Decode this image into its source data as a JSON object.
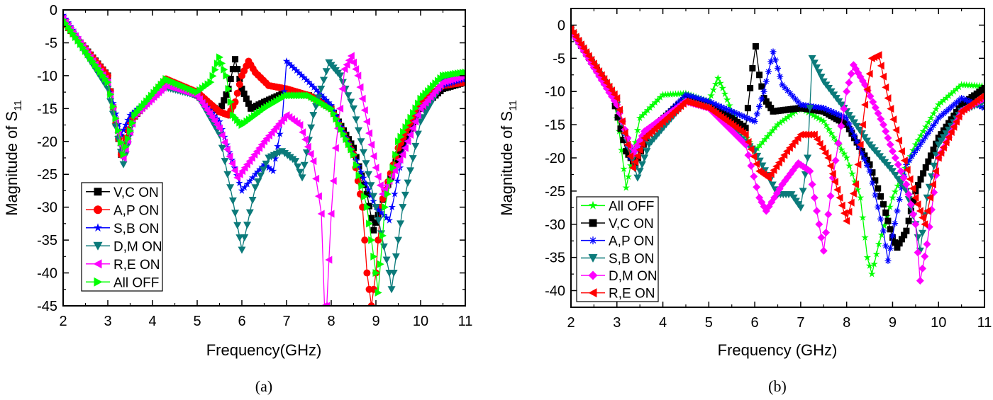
{
  "chart_data": [
    {
      "type": "line",
      "panel_label": "(a)",
      "xlabel": "Frequency(GHz)",
      "ylabel": "Magnitude of S",
      "ylabel_sub": "11",
      "xlim": [
        2,
        11
      ],
      "ylim": [
        -45,
        0
      ],
      "xticks": [
        "2",
        "3",
        "4",
        "5",
        "6",
        "7",
        "8",
        "9",
        "10",
        "11"
      ],
      "yticks": [
        "0",
        "-5",
        "-10",
        "-15",
        "-20",
        "-25",
        "-30",
        "-35",
        "-40",
        "-45"
      ],
      "grid": false,
      "legend_position": "bottom-left",
      "series": [
        {
          "name": "V,C ON",
          "color": "#000000",
          "marker": "square",
          "x": [
            2,
            3,
            3.3,
            3.5,
            4.3,
            5,
            5.5,
            5.7,
            5.85,
            6,
            6.2,
            6.5,
            7,
            7.5,
            8,
            8.5,
            8.8,
            8.95,
            9.1,
            9.5,
            10,
            10.5,
            11
          ],
          "y": [
            -1.8,
            -10,
            -22,
            -17,
            -10.8,
            -13,
            -15.5,
            -12,
            -7.5,
            -12,
            -15,
            -14,
            -12.5,
            -13,
            -15,
            -21,
            -28,
            -33.5,
            -30,
            -22,
            -15,
            -12,
            -11
          ]
        },
        {
          "name": "A,P ON",
          "color": "#ff0000",
          "marker": "circle",
          "x": [
            2,
            3,
            3.3,
            3.5,
            4.3,
            5,
            5.5,
            5.7,
            5.85,
            6,
            6.15,
            6.3,
            6.6,
            7,
            7.5,
            8,
            8.5,
            8.7,
            8.8,
            8.9,
            9,
            9.1,
            9.5,
            10,
            10.5,
            11
          ],
          "y": [
            -1.8,
            -10,
            -22,
            -17,
            -10.5,
            -12.5,
            -15.5,
            -16,
            -14,
            -10,
            -7.8,
            -9.5,
            -11.5,
            -12,
            -13,
            -15,
            -22,
            -30,
            -40,
            -45,
            -40,
            -30,
            -21,
            -14,
            -11.5,
            -11
          ]
        },
        {
          "name": "S,B ON",
          "color": "#0000ff",
          "marker": "star",
          "x": [
            2,
            3,
            3.3,
            3.5,
            4.3,
            5,
            5.5,
            6,
            6.3,
            6.5,
            6.7,
            6.9,
            7,
            7.5,
            8,
            8.5,
            9,
            9.3,
            9.6,
            10,
            10.5,
            11
          ],
          "y": [
            -0.8,
            -11,
            -19,
            -16,
            -11.5,
            -13,
            -17,
            -27.5,
            -25,
            -23.5,
            -24.5,
            -17,
            -7.8,
            -11,
            -14.5,
            -22,
            -30,
            -32,
            -22,
            -15,
            -11.5,
            -10.5
          ]
        },
        {
          "name": "D,M ON",
          "color": "#0b7a7a",
          "marker": "triangle-down",
          "x": [
            2,
            3,
            3.35,
            3.6,
            4.3,
            5,
            5.5,
            5.8,
            6,
            6.3,
            6.6,
            6.9,
            7.2,
            7.35,
            7.6,
            7.95,
            8.2,
            8.5,
            9,
            9.3,
            9.35,
            9.6,
            10,
            10.5,
            11
          ],
          "y": [
            -1.3,
            -12,
            -23.5,
            -16,
            -11.8,
            -13,
            -19,
            -29,
            -36.5,
            -27,
            -22.5,
            -21.5,
            -23,
            -25.5,
            -16,
            -8,
            -10,
            -15,
            -30,
            -40,
            -42.5,
            -30,
            -17,
            -11,
            -10
          ]
        },
        {
          "name": "R,E ON",
          "color": "#ff00ff",
          "marker": "triangle-left",
          "x": [
            2,
            3,
            3.35,
            3.6,
            4.3,
            5,
            5.5,
            5.9,
            6.5,
            7,
            7.3,
            7.6,
            7.78,
            7.85,
            7.9,
            8,
            8.1,
            8.3,
            8.45,
            8.6,
            8.8,
            9,
            9.15,
            9.3,
            9.6,
            10,
            10.5,
            11
          ],
          "y": [
            -1.3,
            -11,
            -22.5,
            -16,
            -11.5,
            -13,
            -18,
            -25.5,
            -20,
            -16,
            -17.5,
            -23,
            -31,
            -45,
            -45,
            -31,
            -21,
            -9,
            -7,
            -10,
            -17,
            -24,
            -28,
            -26,
            -22,
            -15,
            -11,
            -10
          ]
        },
        {
          "name": "All OFF",
          "color": "#00ff00",
          "marker": "triangle-right",
          "x": [
            2,
            3,
            3.35,
            3.6,
            4.3,
            5,
            5.3,
            5.5,
            5.65,
            5.8,
            6,
            6.5,
            7,
            7.5,
            8,
            8.5,
            8.8,
            9,
            9.05,
            9.2,
            9.5,
            10,
            10.5,
            11
          ],
          "y": [
            -1.5,
            -11,
            -22,
            -16,
            -10.5,
            -12.5,
            -11,
            -7.2,
            -10,
            -16,
            -17.5,
            -15,
            -13,
            -13,
            -15,
            -22,
            -30,
            -40,
            -43,
            -30,
            -20,
            -13.5,
            -10,
            -9.5
          ]
        }
      ]
    },
    {
      "type": "line",
      "panel_label": "(b)",
      "xlabel": "Frequency (GHz)",
      "ylabel": "Magnitude of S",
      "ylabel_sub": "11",
      "xlim": [
        2,
        11
      ],
      "ylim": [
        -42.5,
        2.5
      ],
      "xticks": [
        "2",
        "3",
        "4",
        "5",
        "6",
        "7",
        "8",
        "9",
        "10",
        "11"
      ],
      "yticks": [
        "0",
        "-5",
        "-10",
        "-15",
        "-20",
        "-25",
        "-30",
        "-35",
        "-40"
      ],
      "grid": false,
      "legend_position": "bottom-left",
      "series": [
        {
          "name": "All OFF",
          "color": "#00ff00",
          "marker": "star",
          "x": [
            2,
            2.9,
            3.05,
            3.2,
            3.35,
            3.5,
            4,
            4.5,
            5,
            5.2,
            5.3,
            5.5,
            6,
            6.5,
            7,
            7.5,
            8,
            8.3,
            8.45,
            8.55,
            8.7,
            9,
            9.5,
            10,
            10.5,
            11
          ],
          "y": [
            -0.8,
            -10,
            -16,
            -24.5,
            -19.5,
            -14,
            -10.5,
            -10.3,
            -11.5,
            -8,
            -9.5,
            -13,
            -19,
            -15,
            -12.5,
            -14.5,
            -20,
            -26,
            -35,
            -37.5,
            -33,
            -26,
            -18,
            -12,
            -9,
            -9.2
          ]
        },
        {
          "name": "V,C ON",
          "color": "#000000",
          "marker": "square",
          "x": [
            2,
            2.9,
            3.2,
            3.4,
            3.7,
            4.5,
            5,
            5.5,
            5.8,
            5.95,
            6.02,
            6.1,
            6.2,
            6.4,
            7,
            7.5,
            8,
            8.5,
            8.8,
            9,
            9.1,
            9.3,
            9.5,
            10,
            10.5,
            11
          ],
          "y": [
            -0.6,
            -10.5,
            -19,
            -21,
            -16,
            -11,
            -12,
            -14,
            -15.5,
            -6.5,
            -3.2,
            -7.5,
            -11,
            -13,
            -12.5,
            -13,
            -15,
            -21,
            -27,
            -32,
            -33.5,
            -31,
            -25,
            -17,
            -12,
            -9.5
          ]
        },
        {
          "name": "A,P ON",
          "color": "#0000ff",
          "marker": "asterisk",
          "x": [
            2,
            3,
            3.3,
            3.6,
            4.5,
            5,
            6,
            6.2,
            6.4,
            6.6,
            7,
            7.5,
            8,
            8.5,
            8.8,
            8.9,
            9.1,
            9.3,
            9.6,
            10,
            10.5,
            11
          ],
          "y": [
            -1,
            -11,
            -20,
            -17,
            -10.5,
            -11.5,
            -14.5,
            -10,
            -4,
            -9,
            -12,
            -12.5,
            -14,
            -22,
            -31,
            -35.5,
            -28,
            -21,
            -18,
            -14,
            -11,
            -12.5
          ]
        },
        {
          "name": "S,B ON",
          "color": "#0b7a7a",
          "marker": "triangle-down",
          "x": [
            2,
            3,
            3.45,
            3.7,
            4.5,
            5,
            6,
            6.5,
            6.8,
            7,
            7.15,
            7.25,
            7.5,
            8,
            8.5,
            9,
            9.3,
            9.5,
            9.6,
            9.75,
            10,
            10.5,
            11
          ],
          "y": [
            -0.8,
            -12,
            -23,
            -18,
            -11.5,
            -12.5,
            -19,
            -25.5,
            -25.5,
            -27.5,
            -20,
            -5,
            -8.5,
            -13,
            -18,
            -22,
            -25,
            -30,
            -34,
            -26,
            -18,
            -13,
            -11.5
          ]
        },
        {
          "name": "D,M ON",
          "color": "#ff00ff",
          "marker": "diamond",
          "x": [
            2,
            3,
            3.35,
            3.6,
            4.5,
            5,
            5.8,
            6.1,
            6.25,
            6.6,
            6.95,
            7.2,
            7.4,
            7.5,
            7.7,
            8,
            8.15,
            8.4,
            8.8,
            9,
            9.3,
            9.5,
            9.6,
            9.75,
            10,
            10.5,
            11
          ],
          "y": [
            -0.8,
            -12,
            -19.5,
            -16,
            -11.5,
            -12.5,
            -18,
            -26,
            -28,
            -24,
            -20.8,
            -22,
            -30,
            -34,
            -23,
            -10,
            -6,
            -9,
            -15,
            -19,
            -24,
            -30,
            -38.5,
            -33,
            -20,
            -13,
            -11
          ]
        },
        {
          "name": "R,E ON",
          "color": "#ff0000",
          "marker": "triangle-left",
          "x": [
            2,
            3,
            3.35,
            3.6,
            4.5,
            5,
            5.8,
            6.1,
            6.3,
            6.7,
            7,
            7.3,
            7.6,
            7.85,
            8,
            8.2,
            8.4,
            8.55,
            8.7,
            8.9,
            9.2,
            9.5,
            9.7,
            10,
            10.5,
            11
          ],
          "y": [
            -0.6,
            -11,
            -21.5,
            -17,
            -11.5,
            -12.5,
            -16.5,
            -22,
            -23,
            -19,
            -16.5,
            -16.5,
            -20,
            -26,
            -29.5,
            -24,
            -12,
            -5,
            -4.5,
            -11,
            -19,
            -26,
            -30,
            -20,
            -13,
            -10.5
          ]
        }
      ]
    }
  ]
}
